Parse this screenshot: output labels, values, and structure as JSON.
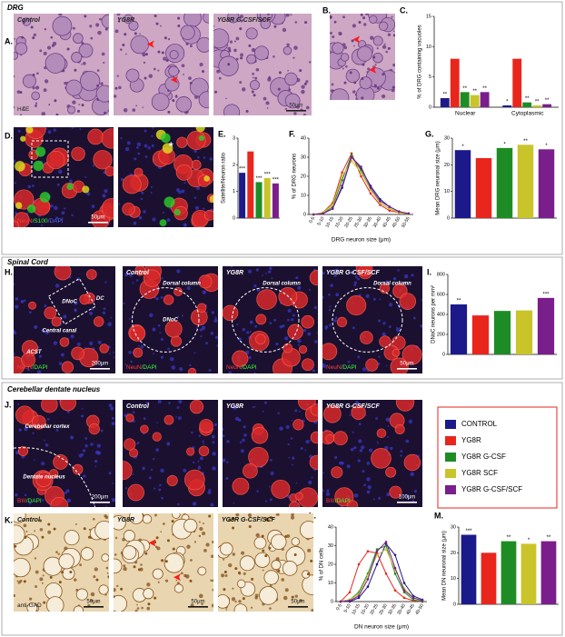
{
  "sections": [
    "DRG",
    "Spinal Cord",
    "Cerebellar dentate nucleus"
  ],
  "panel_letters": [
    "A.",
    "B.",
    "C.",
    "D.",
    "E.",
    "F.",
    "G.",
    "H.",
    "I.",
    "J.",
    "K.",
    "L.",
    "M."
  ],
  "legend": [
    {
      "name": "CONTROL",
      "color": "#1c1a8a"
    },
    {
      "name": "YG8R",
      "color": "#e8261c"
    },
    {
      "name": "YG8R G-CSF",
      "color": "#1e8c24"
    },
    {
      "name": "YG8R SCF",
      "color": "#c9c42a"
    },
    {
      "name": "YG8R G-CSF/SCF",
      "color": "#7a1e8c"
    }
  ],
  "images": [
    {
      "style": "he",
      "title": "Control",
      "corner": [
        "H&E"
      ]
    },
    {
      "style": "he",
      "title": "YG8R"
    },
    {
      "style": "he",
      "title": "YG8R G-CSF/SCF",
      "scale": "50μm"
    },
    {
      "style": "he"
    },
    {
      "style": "fl",
      "corner": [
        "NeuN",
        "/S100",
        "/DAPI"
      ],
      "scale": "50μm"
    },
    {
      "style": "fl",
      "notes": [
        "*"
      ]
    },
    {
      "style": "fl",
      "corner": [
        "NeuN",
        "/DAPI"
      ],
      "scale": "200μm",
      "notes": [
        "DNoC",
        "DC",
        "Central canal",
        "ACST"
      ]
    },
    {
      "style": "fl",
      "title": "Control",
      "corner": [
        "NeuN",
        "/DAPI"
      ],
      "notes": [
        "Dorsal column",
        "DNoC"
      ]
    },
    {
      "style": "fl",
      "title": "YG8R",
      "corner": [
        "NeuN",
        "/DAPI"
      ],
      "notes": [
        "Dorsal column"
      ]
    },
    {
      "style": "fl",
      "title": "YG8R G-CSF/SCF",
      "corner": [
        "NeuN",
        "/DAPI"
      ],
      "scale": "50μm",
      "notes": [
        "Dorsal column"
      ]
    },
    {
      "style": "fl",
      "corner": [
        "BIII",
        "/DAPI"
      ],
      "scale": "200μm",
      "notes": [
        "Cerebellar cortex",
        "Dentate nucleus"
      ]
    },
    {
      "style": "fl",
      "title": "Control"
    },
    {
      "style": "fl",
      "title": "YG8R"
    },
    {
      "style": "fl",
      "title": "YG8R G-CSF/SCF",
      "corner": [
        "BIII",
        "/DAPI"
      ],
      "scale": "100μm"
    },
    {
      "style": "gad",
      "title": "Control",
      "corner": [
        "anti-GAD"
      ],
      "scale": "50μm"
    },
    {
      "style": "gad",
      "title": "YG8R",
      "scale": "50μm"
    },
    {
      "style": "gad",
      "title": "YG8R G-CSF/SCF",
      "scale": "50μm"
    }
  ],
  "chart_data": [
    {
      "type": "grouped-bar",
      "y_label": "% of DRG containing vacuoles",
      "categories": [
        "Nuclear",
        "Cytoplasmic"
      ],
      "ylim": [
        0,
        15
      ],
      "yticks": [
        0,
        5,
        10,
        15
      ],
      "series": [
        {
          "values": [
            1.5,
            0.3
          ],
          "labels": [
            "**",
            "*"
          ]
        },
        {
          "values": [
            8,
            8
          ]
        },
        {
          "values": [
            2.5,
            0.8
          ],
          "labels": [
            "**",
            "**"
          ]
        },
        {
          "values": [
            2,
            0.3
          ],
          "labels": [
            "**",
            "**"
          ]
        },
        {
          "values": [
            2.5,
            0.5
          ],
          "labels": [
            "**",
            "**"
          ]
        }
      ]
    },
    {
      "type": "bar",
      "y_label": "Satellite/Neuron ratio",
      "ylim": [
        0,
        3
      ],
      "yticks": [
        0,
        1,
        2,
        3
      ],
      "values": [
        1.7,
        2.5,
        1.35,
        1.5,
        1.3
      ],
      "labels": [
        "***",
        null,
        "***",
        "***",
        "***"
      ]
    },
    {
      "type": "line",
      "y_label": "% of DRG neurons",
      "x_label": "DRG neuron size (μm)",
      "ylim": [
        0,
        40
      ],
      "yticks": [
        0,
        10,
        20,
        30,
        40
      ],
      "categories": [
        "0-5",
        "5-10",
        "10-15",
        "15-20",
        "20-25",
        "25-30",
        "30-35",
        "35-40",
        "40-45",
        "45-50",
        "50-55"
      ],
      "series": [
        {
          "values": [
            0,
            0.5,
            3,
            14,
            30,
            24,
            15,
            8,
            4,
            1.5,
            0.5
          ]
        },
        {
          "values": [
            0,
            1,
            6,
            22,
            32,
            20,
            11,
            5,
            2,
            1,
            0.3
          ]
        },
        {
          "values": [
            0,
            0.5,
            4,
            18,
            31,
            23,
            13,
            6,
            3,
            1,
            0.3
          ]
        },
        {
          "values": [
            0,
            1,
            5,
            20,
            28,
            22,
            13,
            6,
            3,
            1,
            0.3
          ]
        },
        {
          "values": [
            0,
            0.5,
            3,
            15,
            30,
            25,
            14,
            7,
            4,
            1.5,
            0.5
          ]
        }
      ]
    },
    {
      "type": "bar",
      "y_label": "Mean DRG neuronal size (μm)",
      "ylim": [
        0,
        30
      ],
      "yticks": [
        0,
        10,
        20,
        30
      ],
      "values": [
        25.5,
        22.5,
        26.3,
        27.5,
        25.8
      ],
      "labels": [
        "*",
        null,
        "*",
        "**",
        "*"
      ]
    },
    {
      "type": "bar",
      "y_label": "DNoC neurons per mm²",
      "ylim": [
        0,
        800
      ],
      "yticks": [
        0,
        200,
        400,
        600,
        800
      ],
      "values": [
        500,
        390,
        435,
        440,
        565
      ],
      "labels": [
        "**",
        null,
        null,
        null,
        "***"
      ]
    },
    {
      "type": "line",
      "y_label": "% of DN cells",
      "x_label": "DN neuron size (μm)",
      "ylim": [
        0,
        40
      ],
      "yticks": [
        0,
        10,
        20,
        30,
        40
      ],
      "categories": [
        "0-5",
        "5-10",
        "10-15",
        "15-20",
        "20-25",
        "25-30",
        "30-35",
        "35-40",
        "40-45",
        "45-50"
      ],
      "series": [
        {
          "values": [
            0,
            0,
            2,
            8,
            20,
            31,
            25,
            10,
            3,
            1
          ]
        },
        {
          "values": [
            0,
            5,
            20,
            27,
            26,
            15,
            6,
            2,
            0.5,
            0
          ]
        },
        {
          "values": [
            0,
            1,
            5,
            15,
            28,
            30,
            15,
            5,
            1,
            0
          ]
        },
        {
          "values": [
            0,
            1,
            4,
            14,
            25,
            28,
            17,
            7,
            2,
            0.5
          ]
        },
        {
          "values": [
            0,
            0.5,
            3,
            12,
            27,
            32,
            18,
            6,
            2,
            0.5
          ]
        }
      ]
    },
    {
      "type": "bar",
      "y_label": "Mean DN neuronal size (μm)",
      "ylim": [
        0,
        30
      ],
      "yticks": [
        0,
        10,
        20,
        30
      ],
      "values": [
        27,
        20,
        24.5,
        23.5,
        24.5
      ],
      "labels": [
        "***",
        null,
        "**",
        "*",
        "**"
      ]
    }
  ]
}
